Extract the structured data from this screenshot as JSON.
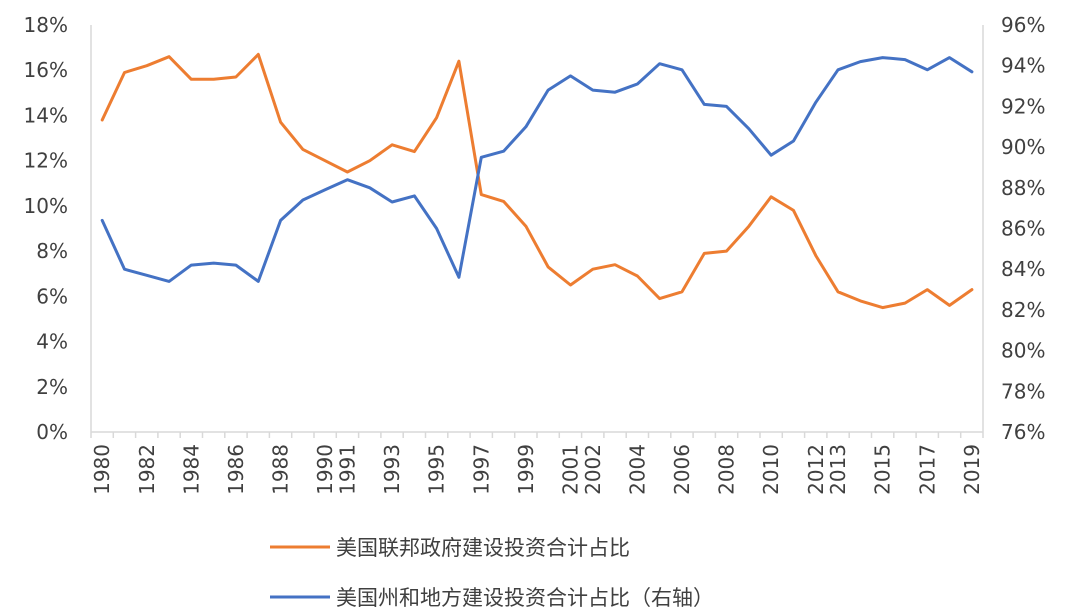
{
  "chart_data": {
    "type": "line",
    "x": [
      "1980",
      "1981",
      "1982",
      "1983",
      "1984",
      "1985",
      "1986",
      "1987",
      "1988",
      "1989",
      "1990",
      "1991",
      "1992",
      "1993",
      "1994",
      "1995",
      "1996",
      "1997",
      "1998",
      "1999",
      "2000",
      "2001",
      "2002",
      "2003",
      "2004",
      "2005",
      "2006",
      "2007",
      "2008",
      "2009",
      "2010",
      "2011",
      "2012",
      "2013",
      "2014",
      "2015",
      "2016",
      "2017",
      "2018",
      "2019"
    ],
    "x_tick_labels": [
      "1980",
      "1982",
      "1984",
      "1986",
      "1988",
      "1990",
      "1991",
      "1993",
      "1995",
      "1997",
      "1999",
      "2001",
      "2002",
      "2004",
      "2006",
      "2008",
      "2010",
      "2012",
      "2013",
      "2015",
      "2017",
      "2019"
    ],
    "left_axis": {
      "ylim": [
        0,
        18
      ],
      "ticks": [
        "0%",
        "2%",
        "4%",
        "6%",
        "8%",
        "10%",
        "12%",
        "14%",
        "16%",
        "18%"
      ]
    },
    "right_axis": {
      "ylim": [
        76,
        96
      ],
      "ticks": [
        "76%",
        "78%",
        "80%",
        "82%",
        "84%",
        "86%",
        "88%",
        "90%",
        "92%",
        "94%",
        "96%"
      ]
    },
    "grid": false,
    "legend_position": "bottom",
    "series": [
      {
        "name": "美国联邦政府建设投资合计占比",
        "axis": "left",
        "color": "#ED7D31",
        "values": [
          13.8,
          15.9,
          16.2,
          16.6,
          15.6,
          15.6,
          15.7,
          16.7,
          13.7,
          12.5,
          12.0,
          11.5,
          12.0,
          12.7,
          12.4,
          13.9,
          16.4,
          10.5,
          10.2,
          9.1,
          7.3,
          6.5,
          7.2,
          7.4,
          6.9,
          5.9,
          6.2,
          7.9,
          8.0,
          9.1,
          10.4,
          9.8,
          7.8,
          6.2,
          5.8,
          5.5,
          5.7,
          6.3,
          5.6,
          6.3
        ]
      },
      {
        "name": "美国州和地方建设投资合计占比（右轴）",
        "axis": "right",
        "color": "#4472C4",
        "values": [
          86.4,
          84.0,
          83.7,
          83.4,
          84.2,
          84.3,
          84.2,
          83.4,
          86.4,
          87.4,
          87.9,
          88.4,
          88.0,
          87.3,
          87.6,
          86.0,
          83.6,
          89.5,
          89.8,
          91.0,
          92.8,
          93.5,
          92.8,
          92.7,
          93.1,
          94.1,
          93.8,
          92.1,
          92.0,
          90.9,
          89.6,
          90.3,
          92.2,
          93.8,
          94.2,
          94.4,
          94.3,
          93.8,
          94.4,
          93.7
        ]
      }
    ]
  }
}
